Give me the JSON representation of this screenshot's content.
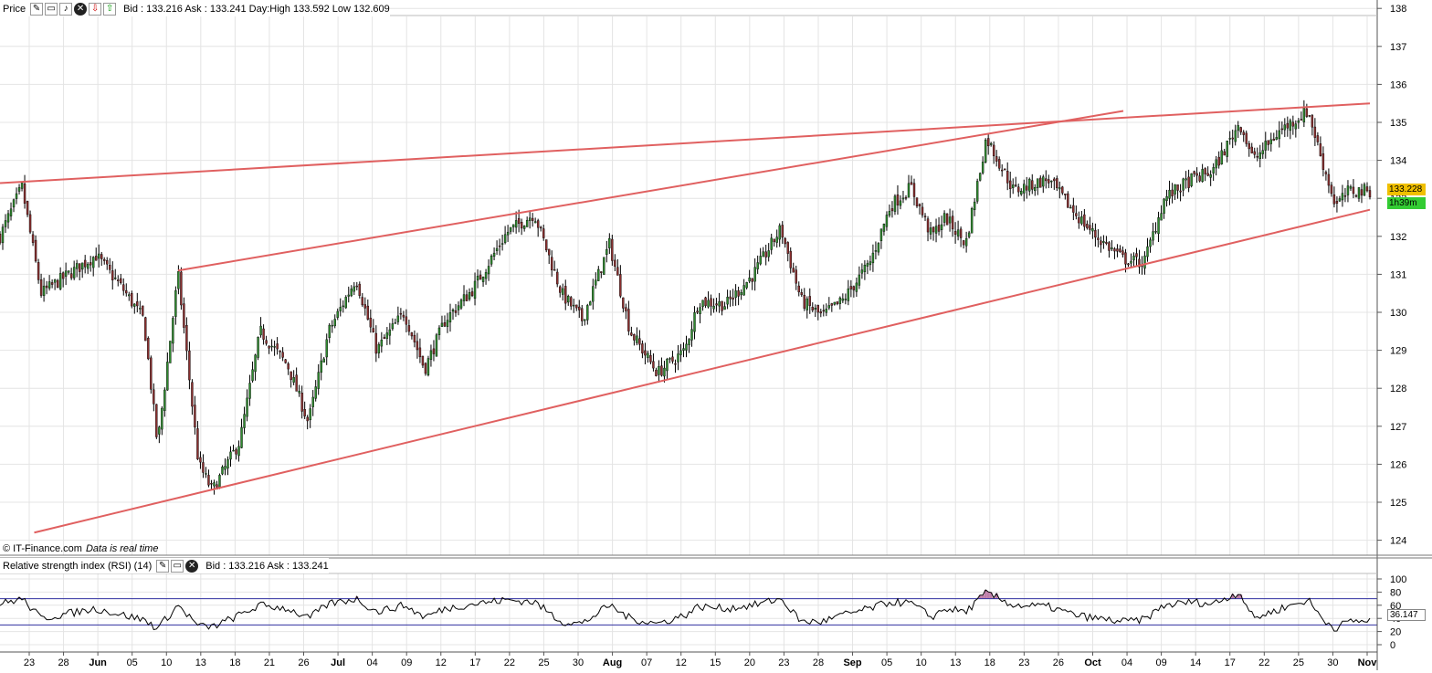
{
  "price_panel": {
    "title": "Price",
    "quote": "Bid : 133.216 Ask : 133.241 Day:High 133.592 Low 132.609",
    "last_price": "133.228",
    "countdown": "1h39m",
    "credit": "© IT-Finance.com",
    "credit_note": "Data is real time",
    "icons": [
      "wrench-icon",
      "window-icon",
      "bell-icon",
      "close-icon",
      "red-alert-icon",
      "green-alert-icon"
    ]
  },
  "rsi_panel": {
    "title": "Relative strength index (RSI) (14)",
    "quote": "Bid : 133.216 Ask : 133.241",
    "last_value": "36.147",
    "icons": [
      "wrench-icon",
      "window-icon",
      "close-icon"
    ]
  },
  "colors": {
    "candle": "#000000",
    "trendline": "#e06060",
    "grid": "#e4e4e4",
    "rsi_bands": "#3030a0",
    "rsi_overbought_fill": "#b870a0",
    "last_price_badge": "#f0c000",
    "countdown_badge": "#33cc33"
  },
  "chart_data": [
    {
      "type": "candlestick",
      "ylim": [
        123.6,
        138.2
      ],
      "yticks": [
        124,
        125,
        126,
        127,
        128,
        129,
        130,
        131,
        132,
        133,
        134,
        135,
        136,
        137,
        138
      ],
      "xticks": [
        "23",
        "28",
        "Jun",
        "05",
        "10",
        "13",
        "18",
        "21",
        "26",
        "Jul",
        "04",
        "09",
        "12",
        "17",
        "22",
        "25",
        "30",
        "Aug",
        "07",
        "12",
        "15",
        "20",
        "23",
        "28",
        "Sep",
        "05",
        "10",
        "13",
        "18",
        "23",
        "26",
        "Oct",
        "04",
        "09",
        "14",
        "17",
        "22",
        "25",
        "30",
        "Nov"
      ],
      "key_closes": [
        [
          0,
          132.0
        ],
        [
          0.016,
          133.3
        ],
        [
          0.03,
          130.5
        ],
        [
          0.07,
          131.5
        ],
        [
          0.09,
          130.6
        ],
        [
          0.105,
          129.8
        ],
        [
          0.115,
          126.5
        ],
        [
          0.13,
          131.0
        ],
        [
          0.145,
          126.0
        ],
        [
          0.155,
          125.3
        ],
        [
          0.175,
          126.6
        ],
        [
          0.19,
          129.5
        ],
        [
          0.21,
          128.6
        ],
        [
          0.225,
          127.1
        ],
        [
          0.24,
          129.5
        ],
        [
          0.26,
          130.9
        ],
        [
          0.275,
          129.0
        ],
        [
          0.295,
          130.0
        ],
        [
          0.31,
          128.5
        ],
        [
          0.325,
          129.8
        ],
        [
          0.345,
          130.6
        ],
        [
          0.37,
          132.1
        ],
        [
          0.39,
          132.6
        ],
        [
          0.41,
          130.5
        ],
        [
          0.425,
          129.8
        ],
        [
          0.445,
          131.8
        ],
        [
          0.46,
          129.5
        ],
        [
          0.48,
          128.4
        ],
        [
          0.5,
          129.0
        ],
        [
          0.51,
          130.3
        ],
        [
          0.53,
          130.2
        ],
        [
          0.55,
          131.0
        ],
        [
          0.57,
          132.2
        ],
        [
          0.585,
          130.3
        ],
        [
          0.6,
          129.9
        ],
        [
          0.615,
          130.3
        ],
        [
          0.635,
          131.3
        ],
        [
          0.65,
          132.8
        ],
        [
          0.665,
          133.3
        ],
        [
          0.68,
          132.0
        ],
        [
          0.69,
          132.5
        ],
        [
          0.705,
          131.8
        ],
        [
          0.72,
          134.6
        ],
        [
          0.74,
          133.2
        ],
        [
          0.765,
          133.5
        ],
        [
          0.785,
          132.6
        ],
        [
          0.8,
          132.0
        ],
        [
          0.82,
          131.4
        ],
        [
          0.835,
          131.3
        ],
        [
          0.85,
          133.0
        ],
        [
          0.87,
          133.5
        ],
        [
          0.885,
          133.7
        ],
        [
          0.905,
          135.0
        ],
        [
          0.915,
          134.0
        ],
        [
          0.935,
          134.8
        ],
        [
          0.955,
          135.3
        ],
        [
          0.965,
          134.0
        ],
        [
          0.975,
          132.8
        ],
        [
          0.985,
          133.2
        ]
      ],
      "trendlines": [
        {
          "from": [
            0.0,
            133.4
          ],
          "to": [
            1.0,
            135.5
          ]
        },
        {
          "from": [
            0.13,
            131.1
          ],
          "to": [
            0.82,
            135.3
          ]
        },
        {
          "from": [
            0.025,
            124.2
          ],
          "to": [
            1.0,
            132.7
          ]
        }
      ]
    },
    {
      "type": "line",
      "ylim": [
        0,
        100
      ],
      "yticks": [
        0,
        20,
        40,
        60,
        80,
        100
      ],
      "bands": [
        30,
        70
      ],
      "key_values": [
        [
          0,
          62
        ],
        [
          0.016,
          70
        ],
        [
          0.03,
          40
        ],
        [
          0.07,
          55
        ],
        [
          0.09,
          45
        ],
        [
          0.105,
          38
        ],
        [
          0.115,
          25
        ],
        [
          0.13,
          60
        ],
        [
          0.145,
          28
        ],
        [
          0.155,
          27
        ],
        [
          0.175,
          45
        ],
        [
          0.19,
          60
        ],
        [
          0.21,
          55
        ],
        [
          0.225,
          40
        ],
        [
          0.24,
          62
        ],
        [
          0.26,
          70
        ],
        [
          0.275,
          50
        ],
        [
          0.295,
          60
        ],
        [
          0.31,
          42
        ],
        [
          0.325,
          55
        ],
        [
          0.345,
          62
        ],
        [
          0.37,
          68
        ],
        [
          0.39,
          65
        ],
        [
          0.41,
          35
        ],
        [
          0.425,
          32
        ],
        [
          0.445,
          60
        ],
        [
          0.46,
          40
        ],
        [
          0.48,
          32
        ],
        [
          0.5,
          45
        ],
        [
          0.51,
          58
        ],
        [
          0.53,
          55
        ],
        [
          0.55,
          60
        ],
        [
          0.57,
          70
        ],
        [
          0.585,
          35
        ],
        [
          0.6,
          35
        ],
        [
          0.615,
          45
        ],
        [
          0.635,
          55
        ],
        [
          0.65,
          65
        ],
        [
          0.665,
          63
        ],
        [
          0.68,
          42
        ],
        [
          0.69,
          55
        ],
        [
          0.705,
          50
        ],
        [
          0.72,
          79
        ],
        [
          0.74,
          60
        ],
        [
          0.765,
          58
        ],
        [
          0.785,
          45
        ],
        [
          0.8,
          40
        ],
        [
          0.82,
          35
        ],
        [
          0.835,
          38
        ],
        [
          0.85,
          60
        ],
        [
          0.87,
          65
        ],
        [
          0.885,
          62
        ],
        [
          0.905,
          80
        ],
        [
          0.915,
          40
        ],
        [
          0.935,
          55
        ],
        [
          0.955,
          68
        ],
        [
          0.965,
          40
        ],
        [
          0.975,
          25
        ],
        [
          0.985,
          36
        ]
      ]
    }
  ]
}
